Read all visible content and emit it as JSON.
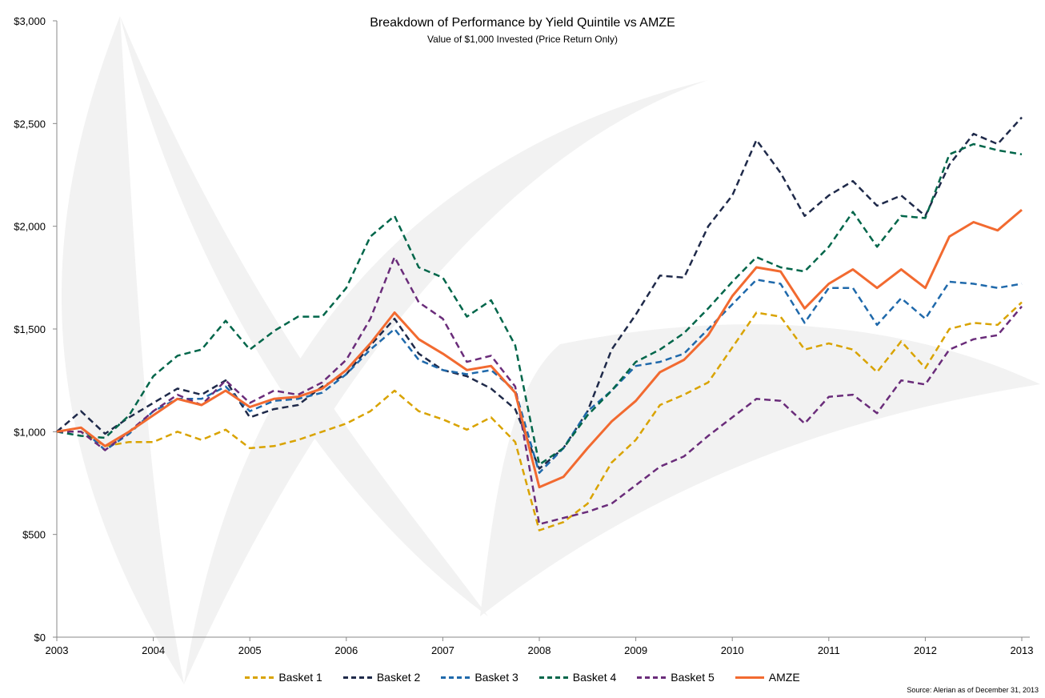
{
  "chart_data": {
    "type": "line",
    "title": "Breakdown of Performance by Yield Quintile vs AMZE",
    "subtitle": "Value of $1,000 Invested (Price Return Only)",
    "xlabel": "",
    "ylabel": "",
    "xlim": [
      2003,
      2013
    ],
    "ylim": [
      0,
      3000
    ],
    "x_ticks": [
      "2003",
      "2004",
      "2005",
      "2006",
      "2007",
      "2008",
      "2009",
      "2010",
      "2011",
      "2012",
      "2013"
    ],
    "y_ticks": [
      "$0",
      "$500",
      "$1,000",
      "$1,500",
      "$2,000",
      "$2,500",
      "$3,000"
    ],
    "y_tick_values": [
      0,
      500,
      1000,
      1500,
      2000,
      2500,
      3000
    ],
    "x": [
      2003,
      2003.25,
      2003.5,
      2003.75,
      2004,
      2004.25,
      2004.5,
      2004.75,
      2005,
      2005.25,
      2005.5,
      2005.75,
      2006,
      2006.25,
      2006.5,
      2006.75,
      2007,
      2007.25,
      2007.5,
      2007.75,
      2008,
      2008.25,
      2008.5,
      2008.75,
      2009,
      2009.25,
      2009.5,
      2009.75,
      2010,
      2010.25,
      2010.5,
      2010.75,
      2011,
      2011.25,
      2011.5,
      2011.75,
      2012,
      2012.25,
      2012.5,
      2012.75,
      2013
    ],
    "series": [
      {
        "name": "Basket 1",
        "color": "#d9a300",
        "dashed": true,
        "values": [
          1000,
          1000,
          930,
          950,
          950,
          1000,
          960,
          1010,
          920,
          930,
          960,
          1000,
          1040,
          1100,
          1200,
          1100,
          1060,
          1010,
          1070,
          950,
          520,
          560,
          650,
          850,
          960,
          1130,
          1180,
          1240,
          1410,
          1580,
          1560,
          1400,
          1430,
          1400,
          1290,
          1440,
          1310,
          1500,
          1530,
          1520,
          1630
        ]
      },
      {
        "name": "Basket 2",
        "color": "#1f2a4a",
        "dashed": true,
        "values": [
          1000,
          1100,
          990,
          1070,
          1140,
          1210,
          1180,
          1250,
          1070,
          1110,
          1130,
          1220,
          1280,
          1420,
          1550,
          1380,
          1300,
          1270,
          1210,
          1110,
          820,
          920,
          1100,
          1400,
          1570,
          1760,
          1750,
          2000,
          2150,
          2420,
          2260,
          2050,
          2150,
          2220,
          2100,
          2150,
          2050,
          2300,
          2450,
          2400,
          2530
        ]
      },
      {
        "name": "Basket 3",
        "color": "#1f69ab",
        "dashed": true,
        "values": [
          1000,
          1020,
          910,
          990,
          1100,
          1160,
          1160,
          1220,
          1100,
          1150,
          1160,
          1190,
          1280,
          1400,
          1500,
          1350,
          1300,
          1280,
          1300,
          1200,
          800,
          920,
          1100,
          1200,
          1320,
          1340,
          1380,
          1500,
          1620,
          1740,
          1720,
          1530,
          1700,
          1700,
          1520,
          1650,
          1550,
          1730,
          1720,
          1700,
          1720
        ]
      },
      {
        "name": "Basket 4",
        "color": "#00664a",
        "dashed": true,
        "values": [
          1000,
          980,
          970,
          1080,
          1270,
          1370,
          1400,
          1540,
          1400,
          1490,
          1560,
          1560,
          1700,
          1950,
          2050,
          1800,
          1750,
          1560,
          1640,
          1420,
          840,
          920,
          1080,
          1200,
          1340,
          1400,
          1480,
          1600,
          1730,
          1850,
          1800,
          1780,
          1900,
          2070,
          1900,
          2050,
          2040,
          2350,
          2400,
          2370,
          2350
        ]
      },
      {
        "name": "Basket 5",
        "color": "#6a2c7a",
        "dashed": true,
        "values": [
          1000,
          1000,
          910,
          1000,
          1100,
          1180,
          1130,
          1250,
          1140,
          1200,
          1180,
          1240,
          1350,
          1550,
          1850,
          1630,
          1550,
          1340,
          1370,
          1220,
          550,
          580,
          610,
          650,
          740,
          830,
          880,
          980,
          1070,
          1160,
          1150,
          1040,
          1170,
          1180,
          1090,
          1250,
          1230,
          1400,
          1450,
          1470,
          1610
        ]
      },
      {
        "name": "AMZE",
        "color": "#f26a30",
        "dashed": false,
        "values": [
          1000,
          1020,
          930,
          1000,
          1080,
          1160,
          1130,
          1200,
          1120,
          1160,
          1170,
          1210,
          1300,
          1430,
          1580,
          1450,
          1380,
          1300,
          1320,
          1190,
          730,
          780,
          920,
          1050,
          1150,
          1290,
          1350,
          1470,
          1660,
          1800,
          1780,
          1600,
          1720,
          1790,
          1700,
          1790,
          1700,
          1950,
          2020,
          1980,
          2080
        ]
      }
    ],
    "legend": "bottom-center",
    "grid": false,
    "source": "Source: Alerian as of December 31, 2013"
  }
}
